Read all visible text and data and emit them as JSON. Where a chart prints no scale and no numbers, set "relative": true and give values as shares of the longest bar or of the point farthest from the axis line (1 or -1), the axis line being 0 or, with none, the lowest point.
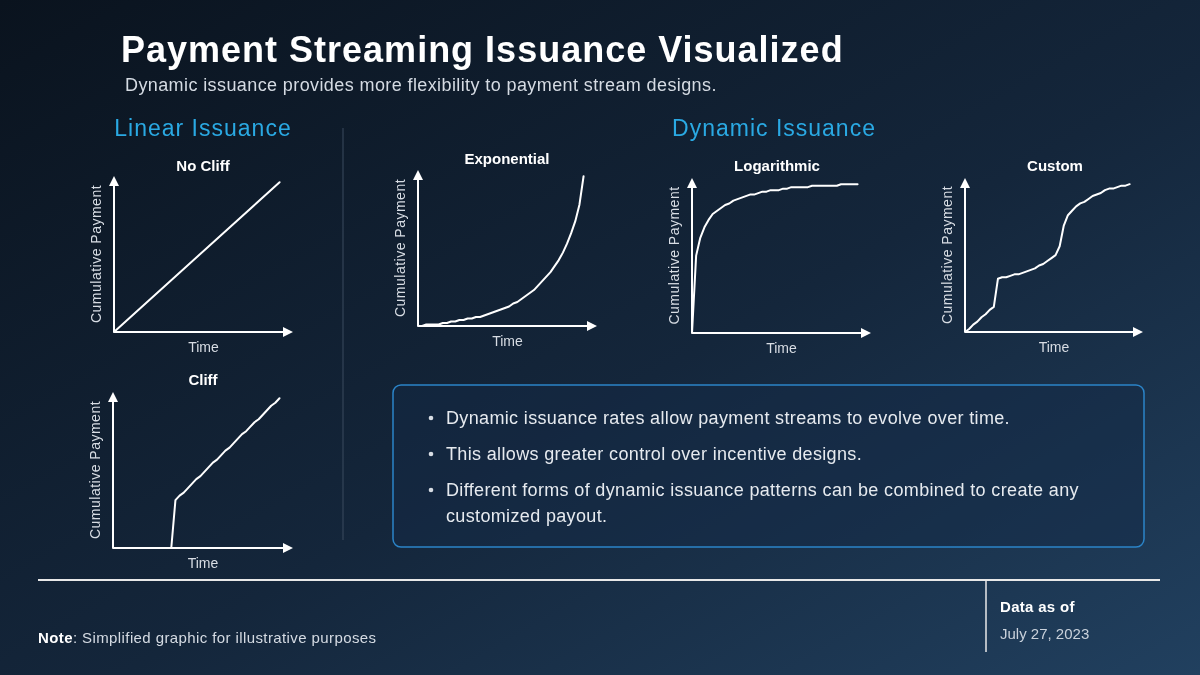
{
  "chart_data": [
    {
      "type": "other",
      "title": "Payment Streaming Issuance Visualized",
      "subtitle": "Dynamic issuance provides more flexibility to payment stream designs.",
      "annotations": [
        "Linear Issuance",
        "Dynamic Issuance"
      ]
    },
    {
      "type": "line",
      "title": "No Cliff",
      "xlabel": "Time",
      "ylabel": "Cumulative Payment",
      "relative": true,
      "categories": [
        null,
        null
      ],
      "series": [
        {
          "color": "#ffffff",
          "values": [
            0,
            1
          ]
        }
      ]
    },
    {
      "type": "line",
      "title": "Exponential",
      "xlabel": "Time",
      "ylabel": "Cumulative Payment",
      "relative": true,
      "categories": [
        null,
        null,
        null,
        null,
        null,
        null,
        null,
        null,
        null,
        null,
        null,
        null,
        null,
        null,
        null,
        null,
        null,
        null,
        null,
        null,
        null,
        null,
        null,
        null,
        null,
        null,
        null,
        null,
        null,
        null,
        null,
        null,
        null,
        null,
        null,
        null,
        null,
        null,
        null,
        null,
        null
      ],
      "series": [
        {
          "color": "#ffffff",
          "values": [
            0,
            0,
            0.01,
            0.01,
            0.01,
            0.01,
            0.02,
            0.02,
            0.03,
            0.03,
            0.04,
            0.04,
            0.05,
            0.05,
            0.06,
            0.06,
            0.07,
            0.08,
            0.09,
            0.1,
            0.11,
            0.12,
            0.13,
            0.15,
            0.16,
            0.18,
            0.2,
            0.22,
            0.24,
            0.27,
            0.3,
            0.33,
            0.36,
            0.4,
            0.44,
            0.49,
            0.55,
            0.62,
            0.7,
            0.81,
            1
          ]
        }
      ]
    },
    {
      "type": "line",
      "title": "Logarithmic",
      "xlabel": "Time",
      "ylabel": "Cumulative Payment",
      "relative": true,
      "categories": [
        null,
        null,
        null,
        null,
        null,
        null,
        null,
        null,
        null,
        null,
        null,
        null,
        null,
        null,
        null,
        null,
        null,
        null,
        null,
        null,
        null,
        null,
        null,
        null,
        null,
        null,
        null,
        null,
        null,
        null,
        null,
        null,
        null,
        null,
        null,
        null,
        null,
        null,
        null,
        null,
        null
      ],
      "series": [
        {
          "color": "#ffffff",
          "values": [
            0,
            0.52,
            0.64,
            0.71,
            0.76,
            0.8,
            0.82,
            0.84,
            0.86,
            0.87,
            0.89,
            0.9,
            0.91,
            0.92,
            0.93,
            0.93,
            0.94,
            0.95,
            0.95,
            0.96,
            0.96,
            0.96,
            0.97,
            0.97,
            0.98,
            0.98,
            0.98,
            0.98,
            0.98,
            0.99,
            0.99,
            0.99,
            0.99,
            0.99,
            0.99,
            0.99,
            1,
            1,
            1,
            1,
            1
          ]
        }
      ]
    },
    {
      "type": "line",
      "title": "Custom",
      "xlabel": "Time",
      "ylabel": "Cumulative Payment",
      "relative": true,
      "categories": [
        null,
        null,
        null,
        null,
        null,
        null,
        null,
        null,
        null,
        null,
        null,
        null,
        null,
        null,
        null,
        null,
        null,
        null,
        null,
        null,
        null,
        null,
        null,
        null,
        null,
        null,
        null,
        null,
        null,
        null,
        null,
        null,
        null,
        null,
        null,
        null,
        null,
        null,
        null,
        null,
        null
      ],
      "series": [
        {
          "color": "#ffffff",
          "values": [
            0,
            0.02,
            0.05,
            0.07,
            0.1,
            0.12,
            0.15,
            0.17,
            0.36,
            0.37,
            0.37,
            0.38,
            0.39,
            0.39,
            0.4,
            0.41,
            0.42,
            0.43,
            0.45,
            0.46,
            0.48,
            0.5,
            0.52,
            0.58,
            0.72,
            0.79,
            0.82,
            0.85,
            0.87,
            0.88,
            0.9,
            0.92,
            0.93,
            0.94,
            0.96,
            0.97,
            0.97,
            0.98,
            0.99,
            0.99,
            1
          ]
        }
      ]
    },
    {
      "type": "line",
      "title": "Cliff",
      "xlabel": "Time",
      "ylabel": "Cumulative Payment",
      "relative": true,
      "categories": [
        null,
        null,
        null,
        null,
        null,
        null,
        null,
        null,
        null,
        null,
        null,
        null,
        null,
        null,
        null,
        null,
        null,
        null,
        null,
        null,
        null,
        null,
        null,
        null,
        null,
        null,
        null,
        null,
        null,
        null,
        null,
        null,
        null,
        null,
        null,
        null,
        null,
        null,
        null,
        null,
        null
      ],
      "series": [
        {
          "color": "#ffffff",
          "values": [
            0,
            0,
            0,
            0,
            0,
            0,
            0,
            0,
            0,
            0,
            0,
            0,
            0,
            0,
            0,
            0.32,
            0.35,
            0.37,
            0.4,
            0.43,
            0.46,
            0.48,
            0.51,
            0.54,
            0.57,
            0.59,
            0.62,
            0.65,
            0.67,
            0.7,
            0.73,
            0.76,
            0.78,
            0.81,
            0.84,
            0.86,
            0.89,
            0.92,
            0.95,
            0.97,
            1
          ]
        }
      ]
    },
    {
      "type": "other",
      "annotations": [
        "Dynamic issuance rates allow payment streams to evolve over time.",
        "This allows greater control over incentive designs.",
        "Different forms of dynamic issuance patterns can be combined to create any customized payout."
      ]
    },
    {
      "type": "other",
      "annotations": [
        "Note: Simplified graphic for illustrative purposes",
        "Data as of",
        "July 27, 2023"
      ]
    }
  ]
}
